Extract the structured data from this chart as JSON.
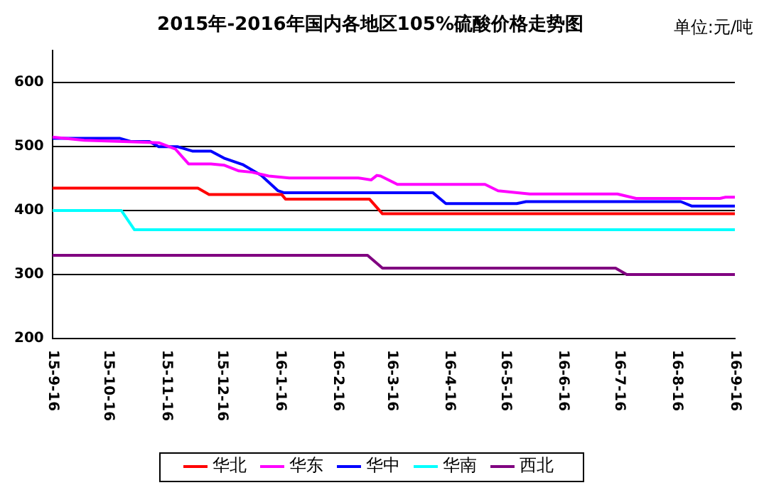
{
  "chart_data": {
    "type": "line",
    "title": "2015年-2016年国内各地区105%硫酸价格走势图",
    "annotations": [
      "单位:元/吨"
    ],
    "xlim": [
      "2015-09-16",
      "2016-09-16"
    ],
    "xticks": [
      {
        "value": "2015-09-16",
        "label": "15-9-16"
      },
      {
        "value": "2015-10-16",
        "label": "15-10-16"
      },
      {
        "value": "2015-11-16",
        "label": "15-11-16"
      },
      {
        "value": "2015-12-16",
        "label": "15-12-16"
      },
      {
        "value": "2016-01-16",
        "label": "16-1-16"
      },
      {
        "value": "2016-02-16",
        "label": "16-2-16"
      },
      {
        "value": "2016-03-16",
        "label": "16-3-16"
      },
      {
        "value": "2016-04-16",
        "label": "16-4-16"
      },
      {
        "value": "2016-05-16",
        "label": "16-5-16"
      },
      {
        "value": "2016-06-16",
        "label": "16-6-16"
      },
      {
        "value": "2016-07-16",
        "label": "16-7-16"
      },
      {
        "value": "2016-08-16",
        "label": "16-8-16"
      },
      {
        "value": "2016-09-16",
        "label": "16-9-16"
      }
    ],
    "ylim": [
      200,
      650
    ],
    "yticks": [
      200,
      300,
      400,
      500,
      600
    ],
    "grid": "y",
    "legend": "bottom",
    "marker": "none",
    "line_style": "solid",
    "series": [
      {
        "name": "华北",
        "color": "#ff0000",
        "x": [
          "2015-09-16",
          "2015-12-03",
          "2015-12-09",
          "2016-01-17",
          "2016-01-19",
          "2016-03-04",
          "2016-03-11",
          "2016-09-16"
        ],
        "values": [
          435,
          435,
          425,
          425,
          418,
          418,
          395,
          395
        ]
      },
      {
        "name": "华东",
        "color": "#ff00ff",
        "x": [
          "2015-09-16",
          "2015-10-03",
          "2015-10-24",
          "2015-11-12",
          "2015-11-21",
          "2015-11-28",
          "2015-12-10",
          "2015-12-17",
          "2015-12-25",
          "2016-01-01",
          "2016-01-10",
          "2016-01-21",
          "2016-02-27",
          "2016-03-05",
          "2016-03-08",
          "2016-03-10",
          "2016-03-19",
          "2016-05-05",
          "2016-05-12",
          "2016-05-29",
          "2016-07-15",
          "2016-07-25",
          "2016-09-08",
          "2016-09-11",
          "2016-09-16"
        ],
        "values": [
          515,
          510,
          508,
          506,
          496,
          473,
          473,
          471,
          462,
          460,
          454,
          451,
          451,
          448,
          455,
          454,
          441,
          441,
          431,
          426,
          426,
          419,
          419,
          421,
          421
        ]
      },
      {
        "name": "华中",
        "color": "#0000ff",
        "x": [
          "2015-09-16",
          "2015-10-22",
          "2015-10-28",
          "2015-11-07",
          "2015-11-12",
          "2015-11-22",
          "2015-11-30",
          "2015-12-10",
          "2015-12-17",
          "2015-12-27",
          "2016-01-06",
          "2016-01-15",
          "2016-01-18",
          "2016-04-07",
          "2016-04-14",
          "2016-05-22",
          "2016-05-27",
          "2016-08-18",
          "2016-08-24",
          "2016-09-16"
        ],
        "values": [
          513,
          513,
          508,
          508,
          500,
          500,
          493,
          493,
          482,
          472,
          455,
          431,
          428,
          428,
          411,
          411,
          414,
          414,
          407,
          407
        ]
      },
      {
        "name": "华南",
        "color": "#00ffff",
        "x": [
          "2015-09-16",
          "2015-10-23",
          "2015-10-30",
          "2016-09-16"
        ],
        "values": [
          400,
          400,
          370,
          370
        ]
      },
      {
        "name": "西北",
        "color": "#800080",
        "x": [
          "2015-09-16",
          "2016-03-03",
          "2016-03-11",
          "2016-07-14",
          "2016-07-20",
          "2016-09-16"
        ],
        "values": [
          330,
          330,
          310,
          310,
          300,
          300
        ]
      }
    ]
  }
}
